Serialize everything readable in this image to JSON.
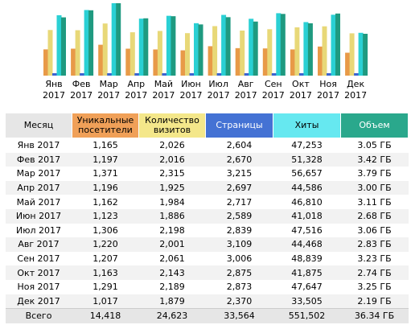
{
  "colors": {
    "unique": "#e89a48",
    "visits": "#e8d878",
    "pages": "#3b63d0",
    "hits": "#2ad0d4",
    "volume": "#1f9a80"
  },
  "chart_data": {
    "type": "bar",
    "categories": [
      "Янв 2017",
      "Фев 2017",
      "Мар 2017",
      "Апр 2017",
      "Май 2017",
      "Июн 2017",
      "Июл 2017",
      "Авг 2017",
      "Сен 2017",
      "Окт 2017",
      "Ноя 2017",
      "Дек 2017"
    ],
    "series": [
      {
        "name": "Уникальные посетители",
        "values": [
          1165,
          1197,
          1371,
          1196,
          1162,
          1123,
          1306,
          1220,
          1207,
          1163,
          1291,
          1017
        ]
      },
      {
        "name": "Количество визитов",
        "values": [
          2026,
          2016,
          2315,
          1925,
          1984,
          1886,
          2198,
          2001,
          2061,
          2143,
          2189,
          1879
        ]
      },
      {
        "name": "Страницы",
        "values": [
          2604,
          2670,
          3215,
          2697,
          2717,
          2589,
          2839,
          3109,
          3006,
          2875,
          2873,
          2370
        ]
      },
      {
        "name": "Хиты",
        "values": [
          47253,
          51328,
          56657,
          44586,
          46810,
          41018,
          47516,
          44468,
          48839,
          41875,
          47647,
          33505
        ]
      },
      {
        "name": "Объем",
        "values": [
          3.05,
          3.42,
          3.79,
          3.0,
          3.11,
          2.68,
          3.06,
          2.83,
          3.23,
          2.74,
          3.25,
          2.19
        ]
      }
    ]
  },
  "months": [
    {
      "m": "Янв",
      "y": "2017"
    },
    {
      "m": "Фев",
      "y": "2017"
    },
    {
      "m": "Мар",
      "y": "2017"
    },
    {
      "m": "Апр",
      "y": "2017"
    },
    {
      "m": "Май",
      "y": "2017"
    },
    {
      "m": "Июн",
      "y": "2017"
    },
    {
      "m": "Июл",
      "y": "2017"
    },
    {
      "m": "Авг",
      "y": "2017"
    },
    {
      "m": "Сен",
      "y": "2017"
    },
    {
      "m": "Окт",
      "y": "2017"
    },
    {
      "m": "Ноя",
      "y": "2017"
    },
    {
      "m": "Дек",
      "y": "2017"
    }
  ],
  "table": {
    "headers": {
      "month": "Месяц",
      "unique_1": "Уникальные",
      "unique_2": "посетители",
      "visits_1": "Количество",
      "visits_2": "визитов",
      "pages": "Страницы",
      "hits": "Хиты",
      "volume": "Объем"
    },
    "rows": [
      [
        "Янв 2017",
        "1,165",
        "2,026",
        "2,604",
        "47,253",
        "3.05 ГБ"
      ],
      [
        "Фев 2017",
        "1,197",
        "2,016",
        "2,670",
        "51,328",
        "3.42 ГБ"
      ],
      [
        "Мар 2017",
        "1,371",
        "2,315",
        "3,215",
        "56,657",
        "3.79 ГБ"
      ],
      [
        "Апр 2017",
        "1,196",
        "1,925",
        "2,697",
        "44,586",
        "3.00 ГБ"
      ],
      [
        "Май 2017",
        "1,162",
        "1,984",
        "2,717",
        "46,810",
        "3.11 ГБ"
      ],
      [
        "Июн 2017",
        "1,123",
        "1,886",
        "2,589",
        "41,018",
        "2.68 ГБ"
      ],
      [
        "Июл 2017",
        "1,306",
        "2,198",
        "2,839",
        "47,516",
        "3.06 ГБ"
      ],
      [
        "Авг 2017",
        "1,220",
        "2,001",
        "3,109",
        "44,468",
        "2.83 ГБ"
      ],
      [
        "Сен 2017",
        "1,207",
        "2,061",
        "3,006",
        "48,839",
        "3.23 ГБ"
      ],
      [
        "Окт 2017",
        "1,163",
        "2,143",
        "2,875",
        "41,875",
        "2.74 ГБ"
      ],
      [
        "Ноя 2017",
        "1,291",
        "2,189",
        "2,873",
        "47,647",
        "3.25 ГБ"
      ],
      [
        "Дек 2017",
        "1,017",
        "1,879",
        "2,370",
        "33,505",
        "2.19 ГБ"
      ]
    ],
    "total": [
      "Всего",
      "14,418",
      "24,623",
      "33,564",
      "551,502",
      "36.34 ГБ"
    ]
  }
}
